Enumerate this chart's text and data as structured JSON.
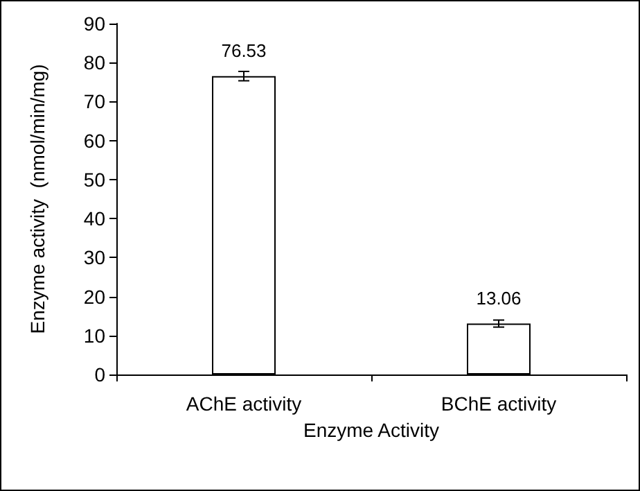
{
  "chart_data": {
    "type": "bar",
    "xlabel": "Enzyme Activity",
    "ylabel": "Enzyme activity  (nmol/min/mg)",
    "categories": [
      "AChE activity",
      "BChE activity"
    ],
    "values": [
      76.53,
      13.06
    ],
    "errors": [
      1.2,
      0.9
    ],
    "color": "#ffffff",
    "data_labels": true,
    "ylim": [
      0,
      90
    ],
    "yticks": [
      0,
      10,
      20,
      30,
      40,
      50,
      60,
      70,
      80,
      90
    ]
  }
}
